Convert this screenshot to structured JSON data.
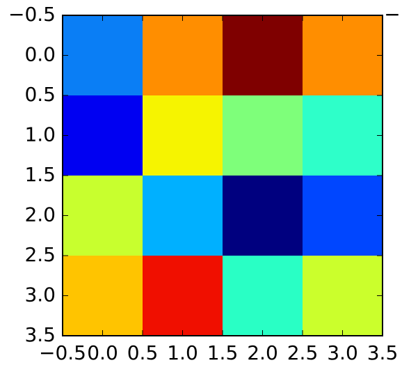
{
  "chart_data": {
    "type": "heatmap",
    "title": "",
    "xlabel": "",
    "ylabel": "",
    "xlim": [
      -0.5,
      3.5
    ],
    "ylim": [
      3.5,
      -0.5
    ],
    "x_ticks": [
      "−0.5",
      "0.0",
      "0.5",
      "1.0",
      "1.5",
      "2.0",
      "2.5",
      "3.0",
      "3.5"
    ],
    "y_ticks": [
      "−0.5",
      "0.0",
      "0.5",
      "1.0",
      "1.5",
      "2.0",
      "2.5",
      "3.0",
      "3.5"
    ],
    "colormap": "jet",
    "cell_colors": [
      [
        "#0a7ef5",
        "#ff8e00",
        "#7f0000",
        "#ff8e00"
      ],
      [
        "#0000f2",
        "#f6f400",
        "#7eff7a",
        "#2effc9"
      ],
      [
        "#c8ff2e",
        "#00b0ff",
        "#00007f",
        "#0046ff"
      ],
      [
        "#ffc400",
        "#f00f00",
        "#29ffc5",
        "#cbff2c"
      ]
    ],
    "grid": false,
    "legend": "none"
  }
}
